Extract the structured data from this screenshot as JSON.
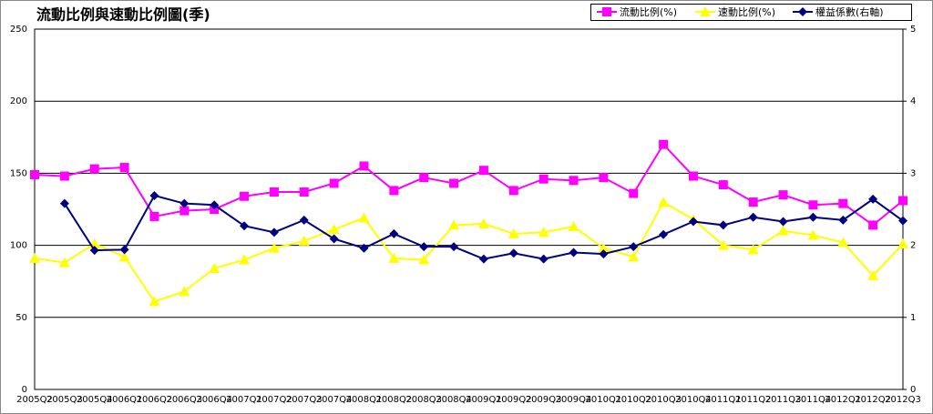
{
  "chart_data": {
    "type": "line",
    "title": "流動比例與速動比例圖(季)",
    "categories": [
      "2005Q2",
      "2005Q3",
      "2005Q4",
      "2006Q1",
      "2006Q2",
      "2006Q3",
      "2006Q4",
      "2007Q1",
      "2007Q2",
      "2007Q3",
      "2007Q4",
      "2008Q1",
      "2008Q2",
      "2008Q3",
      "2008Q4",
      "2009Q1",
      "2009Q2",
      "2009Q3",
      "2009Q4",
      "2010Q1",
      "2010Q2",
      "2010Q3",
      "2010Q4",
      "2011Q1",
      "2011Q2",
      "2011Q3",
      "2011Q4",
      "2012Q1",
      "2012Q2",
      "2012Q3"
    ],
    "series": [
      {
        "name": "流動比例(%)",
        "color": "#ff00ff",
        "marker": "square",
        "values": [
          149,
          148,
          153,
          154,
          120,
          124,
          125,
          134,
          137,
          137,
          143,
          155,
          138,
          147,
          143,
          152,
          138,
          146,
          145,
          147,
          136,
          170,
          148,
          142,
          130,
          135,
          128,
          129,
          114,
          131
        ]
      },
      {
        "name": "速動比例(%)",
        "color": "#ffff00",
        "marker": "triangle",
        "values": [
          91,
          88,
          101,
          92,
          61,
          68,
          84,
          90,
          98,
          103,
          111,
          119,
          91,
          90,
          114,
          115,
          108,
          109,
          113,
          98,
          92,
          130,
          118,
          100,
          97,
          110,
          107,
          102,
          79,
          101
        ]
      },
      {
        "name": "權益係數(右軸)",
        "color": "#000080",
        "marker": "diamond",
        "axis": "y2",
        "values": [
          null,
          2.58,
          1.93,
          1.94,
          2.69,
          2.58,
          2.56,
          2.27,
          2.18,
          2.35,
          2.09,
          1.96,
          2.16,
          1.98,
          1.98,
          1.81,
          1.89,
          1.81,
          1.9,
          1.88,
          1.98,
          2.15,
          2.33,
          2.28,
          2.39,
          2.33,
          2.39,
          2.35,
          2.64,
          2.34
        ]
      }
    ],
    "ylim": [
      0,
      250
    ],
    "yticks": [
      0,
      50,
      100,
      150,
      200,
      250
    ],
    "y2lim": [
      0,
      5
    ],
    "y2ticks": [
      0,
      1,
      2,
      3,
      4,
      5
    ],
    "grid": true
  }
}
